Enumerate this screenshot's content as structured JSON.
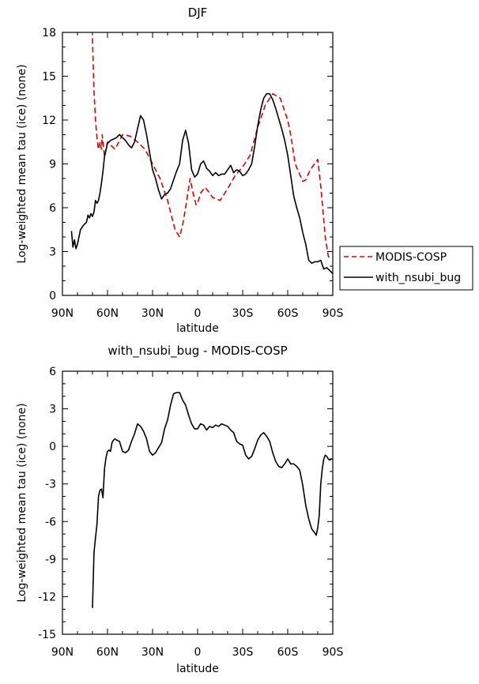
{
  "chart_data": [
    {
      "id": "top",
      "type": "line",
      "title": "DJF",
      "xlabel": "latitude",
      "ylabel": "Log-weighted mean tau (ice) (none)",
      "xlim": [
        -90,
        90
      ],
      "ylim": [
        0,
        18
      ],
      "xticks": [
        -90,
        -60,
        -30,
        0,
        30,
        60,
        90
      ],
      "xtick_labels": [
        "90N",
        "60N",
        "30N",
        "0",
        "30S",
        "60S",
        "90S"
      ],
      "yticks": [
        0,
        3,
        6,
        9,
        12,
        15,
        18
      ],
      "ytick_labels": [
        "0",
        "3",
        "6",
        "9",
        "12",
        "15",
        "18"
      ],
      "legend_position": "right",
      "series": [
        {
          "name": "MODIS-COSP",
          "color": "#dd0000",
          "dash": "dashed",
          "x": [
            -70,
            -69,
            -68,
            -67,
            -66,
            -65,
            -64,
            -63.5,
            -62,
            -60,
            -55,
            -50,
            -45,
            -40,
            -35,
            -30,
            -25,
            -20,
            -15,
            -12,
            -10,
            -8,
            -5,
            -3,
            -1,
            0,
            2,
            5,
            8,
            10,
            15,
            20,
            25,
            30,
            35,
            40,
            45,
            50,
            55,
            60,
            62,
            65,
            70,
            72,
            75,
            80,
            82,
            85,
            87,
            88
          ],
          "y": [
            17.6,
            14.0,
            12.0,
            10.8,
            10.0,
            10.5,
            10.0,
            11.0,
            9.5,
            10.5,
            10.0,
            11.0,
            10.9,
            10.5,
            10.0,
            9.0,
            8.0,
            6.5,
            4.5,
            4.0,
            4.8,
            6.0,
            8.0,
            7.0,
            6.2,
            6.3,
            7.0,
            7.4,
            7.0,
            6.7,
            6.5,
            7.3,
            8.2,
            8.8,
            9.6,
            11.5,
            13.0,
            13.8,
            13.5,
            12.0,
            11.0,
            9.0,
            7.8,
            7.9,
            8.6,
            9.3,
            7.5,
            4.0,
            2.7,
            2.5
          ]
        },
        {
          "name": "with_nsubi_bug",
          "color": "#000000",
          "dash": "solid",
          "x": [
            -84,
            -83,
            -82,
            -81,
            -80,
            -78,
            -76,
            -74,
            -73,
            -72,
            -71,
            -70,
            -69,
            -68,
            -67,
            -66,
            -65,
            -64,
            -63,
            -62,
            -60,
            -58,
            -56,
            -54,
            -52,
            -50,
            -48,
            -46,
            -44,
            -42,
            -40,
            -38,
            -36,
            -34,
            -32,
            -30,
            -28,
            -26,
            -24,
            -22,
            -20,
            -18,
            -16,
            -14,
            -12,
            -10,
            -8,
            -6,
            -4,
            -2,
            0,
            2,
            4,
            6,
            8,
            10,
            12,
            14,
            16,
            18,
            20,
            22,
            24,
            26,
            28,
            30,
            32,
            34,
            36,
            38,
            40,
            42,
            44,
            46,
            48,
            50,
            52,
            54,
            56,
            58,
            60,
            62,
            64,
            66,
            68,
            70,
            72,
            74,
            76,
            78,
            80,
            82,
            84,
            86,
            88,
            90
          ],
          "y": [
            4.4,
            3.3,
            3.8,
            3.2,
            3.5,
            4.5,
            4.8,
            5.0,
            5.5,
            5.3,
            5.6,
            5.4,
            5.7,
            6.5,
            6.3,
            6.5,
            7.0,
            7.7,
            8.5,
            9.5,
            10.4,
            10.6,
            10.7,
            10.8,
            11.0,
            10.8,
            10.6,
            10.3,
            10.1,
            10.5,
            11.4,
            12.3,
            12.0,
            11.0,
            9.8,
            8.6,
            8.0,
            7.2,
            6.6,
            6.9,
            7.0,
            7.3,
            7.9,
            8.5,
            9.0,
            10.6,
            11.3,
            10.4,
            8.6,
            8.1,
            8.3,
            9.0,
            9.2,
            8.7,
            8.5,
            8.2,
            8.4,
            8.2,
            8.3,
            8.3,
            8.6,
            8.9,
            8.4,
            8.6,
            8.5,
            8.2,
            8.3,
            8.6,
            9.0,
            10.2,
            11.6,
            12.7,
            13.5,
            13.8,
            13.8,
            13.4,
            12.8,
            12.1,
            11.4,
            10.6,
            9.6,
            8.2,
            6.8,
            6.0,
            5.3,
            4.3,
            3.5,
            2.4,
            2.2,
            2.3,
            2.3,
            2.4,
            1.8,
            1.9,
            1.7,
            1.5
          ]
        }
      ]
    },
    {
      "id": "bottom",
      "type": "line",
      "title": "with_nsubi_bug - MODIS-COSP",
      "xlabel": "latitude",
      "ylabel": "Log-weighted mean tau (ice) (none)",
      "xlim": [
        -90,
        90
      ],
      "ylim": [
        -15,
        6
      ],
      "xticks": [
        -90,
        -60,
        -30,
        0,
        30,
        60,
        90
      ],
      "xtick_labels": [
        "90N",
        "60N",
        "30N",
        "0",
        "30S",
        "60S",
        "90S"
      ],
      "yticks": [
        -15,
        -12,
        -9,
        -6,
        -3,
        0,
        3,
        6
      ],
      "ytick_labels": [
        "-15",
        "-12",
        "-9",
        "-6",
        "-3",
        "0",
        "3",
        "6"
      ],
      "series": [
        {
          "name": "with_nsubi_bug - MODIS-COSP",
          "color": "#000000",
          "dash": "solid",
          "x": [
            -70,
            -69,
            -68,
            -67,
            -66,
            -65,
            -64,
            -63,
            -62,
            -61,
            -60,
            -59,
            -58,
            -57,
            -56,
            -55,
            -54,
            -52,
            -50,
            -48,
            -46,
            -44,
            -42,
            -40,
            -38,
            -36,
            -34,
            -32,
            -30,
            -28,
            -26,
            -24,
            -22,
            -20,
            -18,
            -16,
            -14,
            -12,
            -10,
            -8,
            -6,
            -4,
            -2,
            0,
            2,
            4,
            6,
            8,
            10,
            12,
            14,
            16,
            18,
            20,
            22,
            24,
            26,
            28,
            30,
            32,
            34,
            36,
            38,
            40,
            42,
            44,
            46,
            48,
            50,
            52,
            54,
            56,
            58,
            60,
            62,
            64,
            66,
            68,
            70,
            72,
            74,
            76,
            78,
            79,
            80,
            81,
            82,
            83,
            84,
            85,
            86,
            87,
            88,
            89,
            90
          ],
          "y": [
            -12.9,
            -8.5,
            -7.3,
            -6.2,
            -4.0,
            -3.5,
            -3.4,
            -4.1,
            -1.8,
            -0.9,
            -0.4,
            -0.3,
            -0.4,
            0.3,
            0.5,
            0.6,
            0.5,
            0.4,
            -0.4,
            -0.5,
            -0.3,
            0.4,
            1.0,
            1.8,
            1.6,
            1.2,
            0.6,
            -0.4,
            -0.7,
            -0.5,
            -0.1,
            0.3,
            1.4,
            2.1,
            3.3,
            4.2,
            4.3,
            4.3,
            3.7,
            3.3,
            2.5,
            1.8,
            1.4,
            1.4,
            1.8,
            1.7,
            1.3,
            1.6,
            1.5,
            1.7,
            1.6,
            1.8,
            1.7,
            1.6,
            1.3,
            1.1,
            0.4,
            0.2,
            0.1,
            -0.7,
            -1.0,
            -0.8,
            -0.2,
            0.5,
            0.9,
            1.1,
            0.8,
            0.4,
            -0.5,
            -1.2,
            -1.6,
            -1.7,
            -1.4,
            -1.0,
            -1.4,
            -1.4,
            -1.6,
            -1.9,
            -3.1,
            -4.7,
            -5.8,
            -6.6,
            -6.9,
            -7.1,
            -6.5,
            -5.5,
            -3.0,
            -1.8,
            -1.0,
            -0.7,
            -0.8,
            -1.0,
            -1.1,
            -1.0,
            -1.0
          ]
        }
      ]
    }
  ]
}
